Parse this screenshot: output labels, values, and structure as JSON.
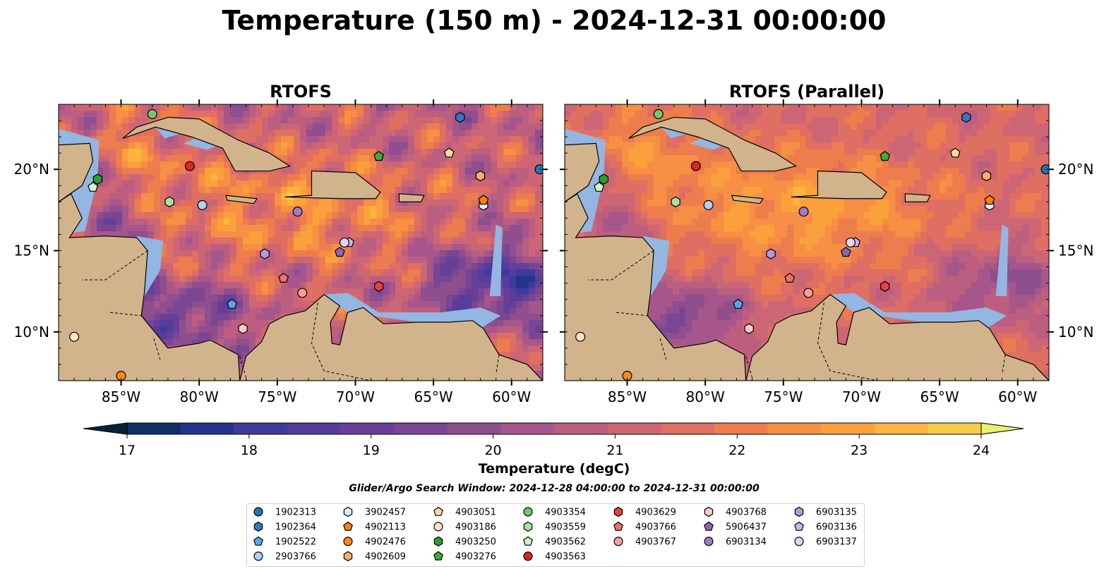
{
  "figure": {
    "title": "Temperature (150 m) - 2024-12-31 00:00:00",
    "search_window": "Glider/Argo Search Window: 2024-12-28 04:00:00 to 2024-12-31 00:00:00"
  },
  "panels": [
    {
      "title": "RTOFS",
      "model": "rtofs"
    },
    {
      "title": "RTOFS (Parallel)",
      "model": "parallel"
    }
  ],
  "map": {
    "lon_range": [
      -89,
      -58
    ],
    "lat_range": [
      7,
      24
    ],
    "lon_ticks": [
      "85°W",
      "80°W",
      "75°W",
      "70°W",
      "65°W",
      "60°W"
    ],
    "lon_tick_values": [
      -85,
      -80,
      -75,
      -70,
      -65,
      -60
    ],
    "lat_ticks": [
      "10°N",
      "15°N",
      "20°N"
    ],
    "lat_tick_values": [
      10,
      15,
      20
    ],
    "colors": {
      "land": "#d2b48c",
      "shelf": "#94b6e2",
      "deep": "#062237",
      "coast": "#000000"
    }
  },
  "colorbar": {
    "label": "Temperature (degC)",
    "min": 16.5,
    "max": 24.5,
    "step": 0.5,
    "tick_labels": [
      "17",
      "18",
      "19",
      "20",
      "21",
      "22",
      "23",
      "24"
    ],
    "tick_values": [
      17,
      18,
      19,
      20,
      21,
      22,
      23,
      24
    ],
    "extend": "both",
    "colormap": [
      "#062237",
      "#0f3066",
      "#24348f",
      "#3f3a9e",
      "#553d9c",
      "#673f98",
      "#7a4693",
      "#8f4e8d",
      "#a6568a",
      "#bb5e80",
      "#cd6674",
      "#df6e63",
      "#ee7d4e",
      "#f78f44",
      "#fba13c",
      "#fbb53f",
      "#f6cb4c",
      "#e8f16a"
    ]
  },
  "legend": {
    "columns": [
      [
        {
          "id": "1902313",
          "color": "#1f77b4",
          "marker": "circle"
        },
        {
          "id": "1902364",
          "color": "#2f78c4",
          "marker": "hexagon"
        },
        {
          "id": "1902522",
          "color": "#58a8e8",
          "marker": "pentagon"
        },
        {
          "id": "2903766",
          "color": "#aed0f4",
          "marker": "circle"
        }
      ],
      [
        {
          "id": "3902457",
          "color": "#d6eefc",
          "marker": "hexagon"
        },
        {
          "id": "4902113",
          "color": "#ff7f0e",
          "marker": "pentagon"
        },
        {
          "id": "4902476",
          "color": "#ff8a1c",
          "marker": "circle"
        },
        {
          "id": "4902609",
          "color": "#ffae66",
          "marker": "hexagon"
        }
      ],
      [
        {
          "id": "4903051",
          "color": "#ffd6a5",
          "marker": "pentagon"
        },
        {
          "id": "4903186",
          "color": "#ffe3c6",
          "marker": "circle"
        },
        {
          "id": "4903250",
          "color": "#2ca02c",
          "marker": "hexagon"
        },
        {
          "id": "4903276",
          "color": "#3aad3a",
          "marker": "pentagon"
        }
      ],
      [
        {
          "id": "4903354",
          "color": "#72c96b",
          "marker": "circle"
        },
        {
          "id": "4903559",
          "color": "#a8e4a0",
          "marker": "hexagon"
        },
        {
          "id": "4903562",
          "color": "#d2f4cc",
          "marker": "pentagon"
        },
        {
          "id": "4903563",
          "color": "#d62728",
          "marker": "circle"
        }
      ],
      [
        {
          "id": "4903629",
          "color": "#e8413f",
          "marker": "hexagon"
        },
        {
          "id": "4903766",
          "color": "#ef6f6a",
          "marker": "pentagon"
        },
        {
          "id": "4903767",
          "color": "#f59f9a",
          "marker": "circle"
        }
      ],
      [
        {
          "id": "4903768",
          "color": "#f9c9c4",
          "marker": "hexagon"
        },
        {
          "id": "5906437",
          "color": "#8c66b5",
          "marker": "pentagon"
        },
        {
          "id": "6903134",
          "color": "#9d7cc8",
          "marker": "circle"
        }
      ],
      [
        {
          "id": "6903135",
          "color": "#b39ad8",
          "marker": "hexagon"
        },
        {
          "id": "6903136",
          "color": "#cbb7e6",
          "marker": "pentagon"
        },
        {
          "id": "6903137",
          "color": "#e2d4f4",
          "marker": "circle"
        }
      ]
    ]
  },
  "observations": [
    {
      "id": "1902313",
      "lon": -58.2,
      "lat": 20.0
    },
    {
      "id": "1902364",
      "lon": -63.3,
      "lat": 23.2
    },
    {
      "id": "1902522",
      "lon": -77.9,
      "lat": 11.7
    },
    {
      "id": "2903766",
      "lon": -79.8,
      "lat": 17.8
    },
    {
      "id": "3902457",
      "lon": -61.8,
      "lat": 17.8
    },
    {
      "id": "4902113",
      "lon": -61.8,
      "lat": 18.1
    },
    {
      "id": "4902476",
      "lon": -85.0,
      "lat": 7.3
    },
    {
      "id": "4902609",
      "lon": -62.0,
      "lat": 19.6
    },
    {
      "id": "4903051",
      "lon": -64.0,
      "lat": 21.0
    },
    {
      "id": "4903186",
      "lon": -88.0,
      "lat": 9.7
    },
    {
      "id": "4903250",
      "lon": -86.5,
      "lat": 19.4
    },
    {
      "id": "4903276",
      "lon": -68.5,
      "lat": 20.8
    },
    {
      "id": "4903354",
      "lon": -83.0,
      "lat": 23.4
    },
    {
      "id": "4903559",
      "lon": -81.9,
      "lat": 18.0
    },
    {
      "id": "4903562",
      "lon": -86.8,
      "lat": 18.9
    },
    {
      "id": "4903563",
      "lon": -80.6,
      "lat": 20.2
    },
    {
      "id": "4903629",
      "lon": -68.5,
      "lat": 12.8
    },
    {
      "id": "4903766",
      "lon": -74.6,
      "lat": 13.3
    },
    {
      "id": "4903767",
      "lon": -73.4,
      "lat": 12.4
    },
    {
      "id": "4903768",
      "lon": -77.2,
      "lat": 10.2
    },
    {
      "id": "5906437",
      "lon": -71.0,
      "lat": 14.9
    },
    {
      "id": "6903134",
      "lon": -73.7,
      "lat": 17.4
    },
    {
      "id": "6903135",
      "lon": -75.8,
      "lat": 14.8
    },
    {
      "id": "6903136",
      "lon": -70.4,
      "lat": 15.5
    },
    {
      "id": "6903137",
      "lon": -70.7,
      "lat": 15.5
    }
  ]
}
